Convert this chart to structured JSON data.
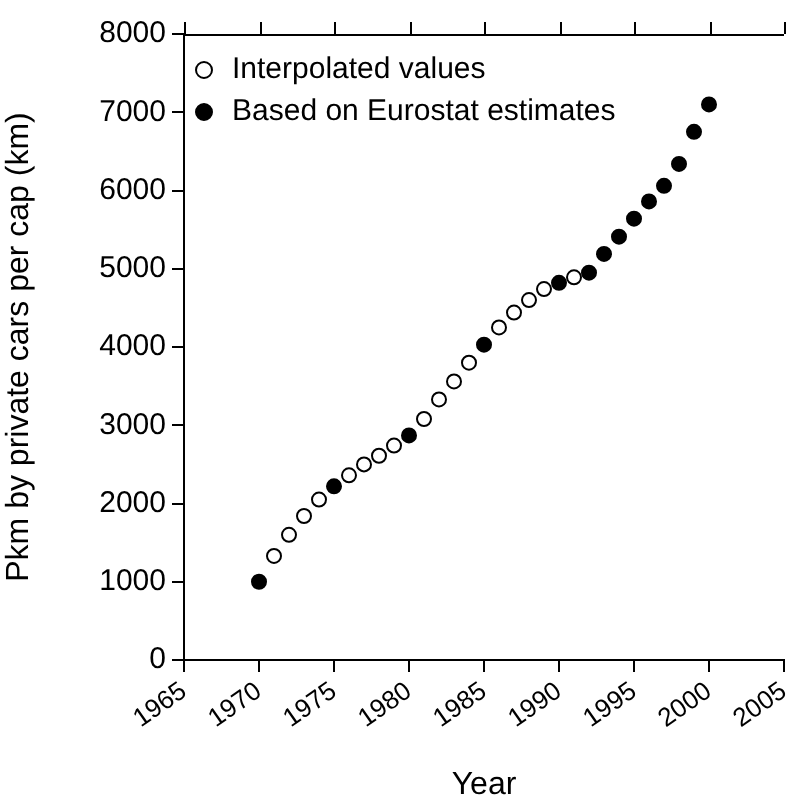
{
  "chart_data": {
    "type": "scatter",
    "xlabel": "Year",
    "ylabel": "Pkm by private cars per cap (km)",
    "xlim": [
      1965,
      2005
    ],
    "xticks": [
      1965,
      1970,
      1975,
      1980,
      1985,
      1990,
      1995,
      2000,
      2005
    ],
    "ylim": [
      0,
      8000
    ],
    "yticks": [
      0,
      1000,
      2000,
      3000,
      4000,
      5000,
      6000,
      7000,
      8000
    ],
    "grid": false,
    "legend": "top left",
    "marker": "circle",
    "series": [
      {
        "name": "Interpolated values",
        "color": "#ffffff",
        "x": [
          1971,
          1972,
          1973,
          1974,
          1976,
          1977,
          1978,
          1979,
          1981,
          1982,
          1983,
          1984,
          1986,
          1987,
          1988,
          1989,
          1991
        ],
        "values": [
          1330,
          1600,
          1840,
          2050,
          2360,
          2500,
          2610,
          2740,
          3080,
          3330,
          3560,
          3800,
          4250,
          4440,
          4600,
          4740,
          4890
        ]
      },
      {
        "name": "Based on Eurostat estimates",
        "color": "#000000",
        "x": [
          1970,
          1975,
          1980,
          1985,
          1990,
          1992,
          1993,
          1994,
          1995,
          1996,
          1997,
          1998,
          1999,
          2000
        ],
        "values": [
          1000,
          2220,
          2870,
          4030,
          4820,
          4950,
          5190,
          5410,
          5640,
          5860,
          6060,
          6340,
          6750,
          7100
        ]
      }
    ]
  }
}
